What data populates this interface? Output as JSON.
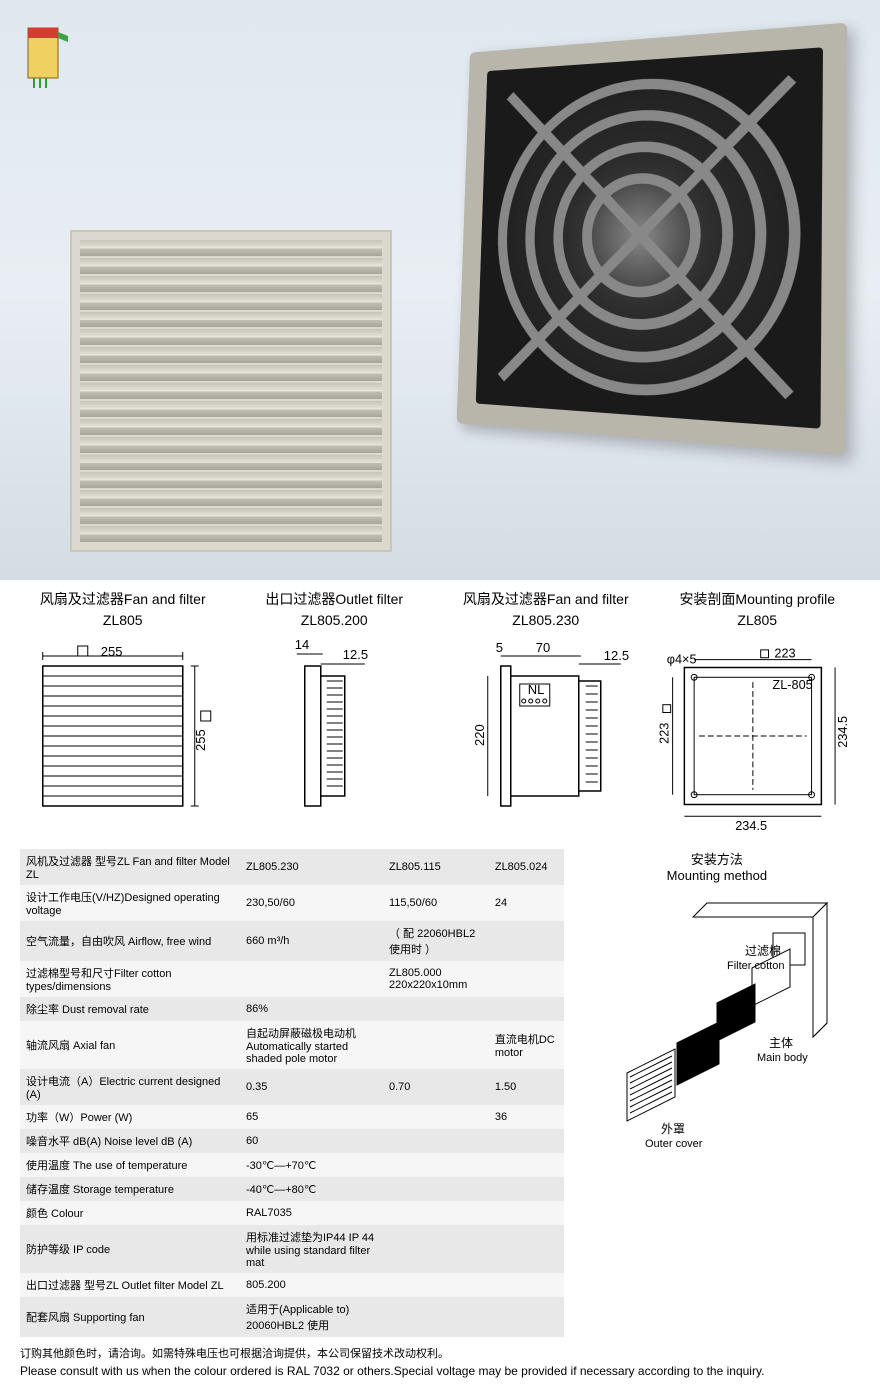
{
  "drawings": [
    {
      "title": "风扇及过滤器Fan and filter",
      "model": "ZL805",
      "dims": {
        "w": "255",
        "h": "255"
      }
    },
    {
      "title": "出口过滤器Outlet filter",
      "model": "ZL805.200",
      "dims": {
        "a": "14",
        "b": "12.5"
      }
    },
    {
      "title": "风扇及过滤器Fan and filter",
      "model": "ZL805.230",
      "dims": {
        "a": "5",
        "b": "70",
        "c": "12.5",
        "h": "220"
      }
    },
    {
      "title": "安装剖面Mounting profile",
      "model": "ZL805",
      "dims": {
        "hole": "φ4×5",
        "sq": "223",
        "outer": "234.5",
        "label": "ZL-805"
      }
    }
  ],
  "spec_rows": [
    {
      "label": "风机及过滤器  型号ZL  Fan and filter  Model ZL",
      "c1": "ZL805.230",
      "c2": "ZL805.115",
      "c3": "ZL805.024"
    },
    {
      "label": "设计工作电压(V/HZ)Designed operating voltage",
      "c1": "230,50/60",
      "c2": "115,50/60",
      "c3": "24"
    },
    {
      "label": "空气流量，自由吹风 Airflow, free wind",
      "c1": "660 m³/h",
      "c2": "（ 配  22060HBL2 使用时 ）",
      "c3": ""
    },
    {
      "label": "过滤棉型号和尺寸Filter cotton types/dimensions",
      "c1": "",
      "c2": "ZL805.000         220x220x10mm",
      "c3": ""
    },
    {
      "label": "除尘率 Dust removal rate",
      "c1": "86%",
      "c2": "",
      "c3": ""
    },
    {
      "label": "轴流风扇 Axial fan",
      "c1": "自起动屏蔽磁极电动机  Automatically started shaded pole motor",
      "c2": "",
      "c3": "直流电机DC motor"
    },
    {
      "label": "设计电流（A）Electric current designed (A)",
      "c1": "0.35",
      "c2": "0.70",
      "c3": "1.50"
    },
    {
      "label": "功率（W）Power (W)",
      "c1": "65",
      "c2": "",
      "c3": "36"
    },
    {
      "label": "噪音水平 dB(A) Noise level dB (A)",
      "c1": "60",
      "c2": "",
      "c3": ""
    },
    {
      "label": "使用温度 The use of temperature",
      "c1": "-30℃—+70℃",
      "c2": "",
      "c3": ""
    },
    {
      "label": "储存温度 Storage temperature",
      "c1": "-40℃—+80℃",
      "c2": "",
      "c3": ""
    },
    {
      "label": "颜色 Colour",
      "c1": "RAL7035",
      "c2": "",
      "c3": ""
    },
    {
      "label": "防护等级 IP code",
      "c1": "用标准过滤垫为IP44   IP 44 while using standard filter mat",
      "c2": "",
      "c3": ""
    },
    {
      "label": "出口过滤器 型号ZL  Outlet filter  Model ZL",
      "c1": "805.200",
      "c2": "",
      "c3": ""
    },
    {
      "label": "配套风扇 Supporting fan",
      "c1": "适用于(Applicable to)  20060HBL2  使用",
      "c2": "",
      "c3": ""
    }
  ],
  "mounting": {
    "title_cn": "安装方法",
    "title_en": "Mounting method",
    "filter_cn": "过滤棉",
    "filter_en": "Filter cotton",
    "body_cn": "主体",
    "body_en": "Main body",
    "cover_cn": "外罩",
    "cover_en": "Outer cover"
  },
  "footer": {
    "cn": "订购其他颜色时，请洽询。如需特殊电压也可根据洽询提供，本公司保留技术改动权利。",
    "en": "Please consult with us when the colour ordered is RAL 7032 or others.Special voltage may be provided if necessary according to the inquiry."
  }
}
